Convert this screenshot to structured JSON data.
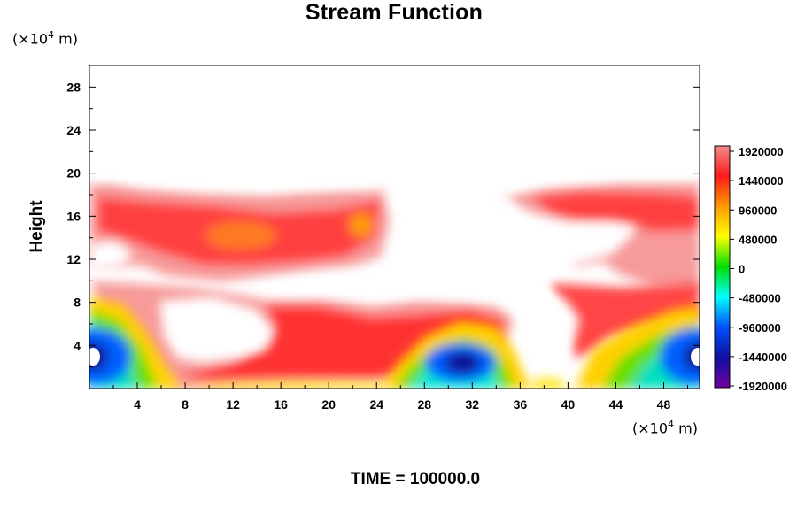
{
  "chart_data": {
    "type": "heatmap",
    "title": "Stream Function",
    "ylabel": "Height",
    "xlabel": "",
    "x_unit": {
      "prefix": "(×10",
      "exp": "4",
      "suffix": " m)"
    },
    "y_unit": {
      "prefix": "(×10",
      "exp": "4",
      "suffix": " m)"
    },
    "xlim": [
      0,
      51
    ],
    "ylim": [
      0,
      30
    ],
    "x_ticks": [
      4,
      8,
      12,
      16,
      20,
      24,
      28,
      32,
      36,
      40,
      44,
      48
    ],
    "y_ticks": [
      4,
      8,
      12,
      16,
      20,
      24,
      28
    ],
    "footer": "TIME = 100000.0",
    "colorbar": {
      "min": -1920000,
      "max": 1920000,
      "labels": [
        "1920000",
        "1440000",
        "960000",
        "480000",
        "0",
        "-480000",
        "-960000",
        "-1440000",
        "-1920000"
      ],
      "colors": [
        "#f28a8a",
        "#ff1a1a",
        "#ff9a00",
        "#ffff00",
        "#00dd00",
        "#00ffff",
        "#0050ff",
        "#1010a0",
        "#7000a0"
      ]
    },
    "features": [
      {
        "name": "upper-positive-band-left",
        "x": 6,
        "y": 16,
        "value": 1300000
      },
      {
        "name": "upper-positive-core",
        "x": 13,
        "y": 14,
        "value": 1560000
      },
      {
        "name": "upper-positive-core-2",
        "x": 23,
        "y": 15,
        "value": 1650000
      },
      {
        "name": "upper-positive-band-right",
        "x": 41,
        "y": 17,
        "value": 1500000
      },
      {
        "name": "lower-positive-band",
        "x": 22,
        "y": 6,
        "value": 1400000
      },
      {
        "name": "negative-vortex-left",
        "x": 0.5,
        "y": 3,
        "value": -1700000
      },
      {
        "name": "negative-vortex-center",
        "x": 31.5,
        "y": 2.3,
        "value": -1900000
      },
      {
        "name": "negative-vortex-right",
        "x": 50.5,
        "y": 3,
        "value": -1700000
      }
    ]
  }
}
